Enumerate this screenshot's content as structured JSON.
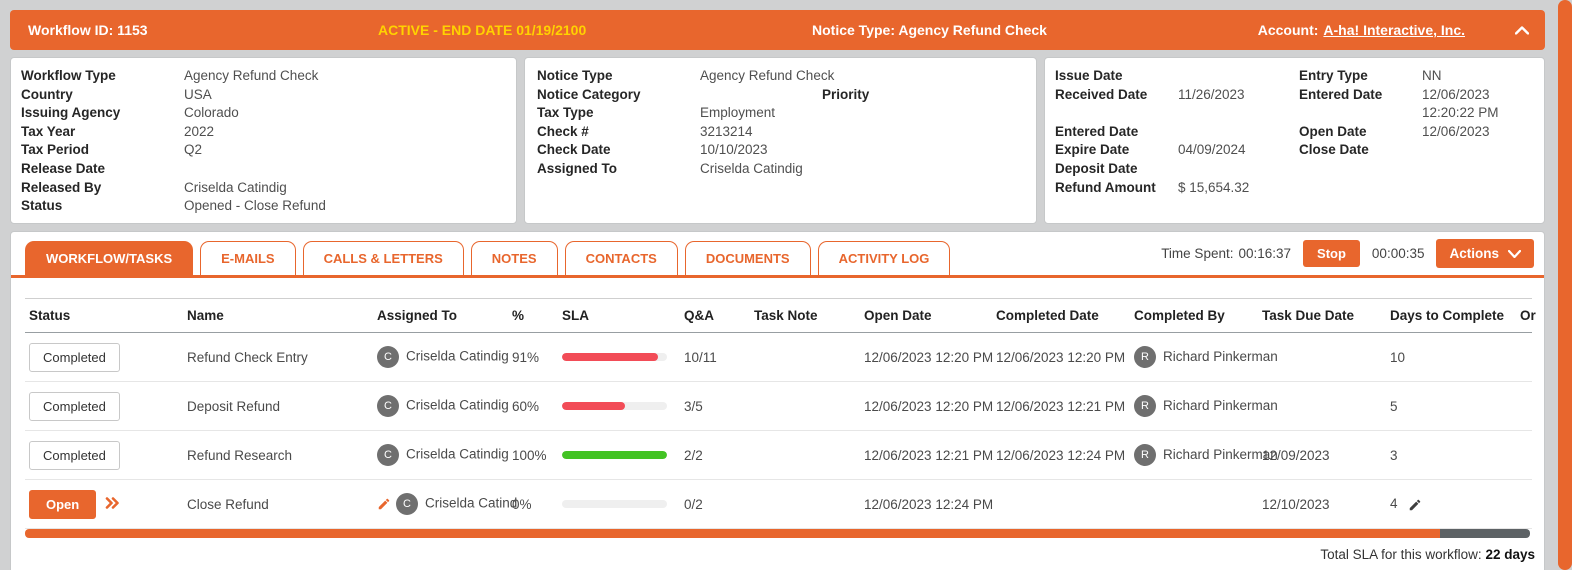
{
  "colors": {
    "accent_orange": "#e8662d",
    "active_yellow": "#ffd200",
    "sla_red": "#f24c57",
    "sla_green": "#43c324",
    "avatar_gray": "#6f6f6f",
    "scroll_thumb_gray": "#5d6265"
  },
  "icons": {
    "header_collapse": "chevron-up",
    "actions_menu": "chevron-down",
    "task_expand": "double-chevron-right",
    "edit": "pencil"
  },
  "header_bar": {
    "workflow_id": "Workflow ID: 1153",
    "active_status": "ACTIVE - END DATE 01/19/2100",
    "notice_type": "Notice Type: Agency Refund Check",
    "account_label": "Account:",
    "account_name": "A-ha! Interactive, Inc."
  },
  "workflow_panel": {
    "fields": [
      {
        "label": "Workflow Type",
        "value": "Agency Refund Check"
      },
      {
        "label": "Country",
        "value": "USA"
      },
      {
        "label": "Issuing Agency",
        "value": "Colorado"
      },
      {
        "label": "Tax Year",
        "value": "2022"
      },
      {
        "label": "Tax Period",
        "value": "Q2"
      },
      {
        "label": "Release Date",
        "value": ""
      },
      {
        "label": "Released By",
        "value": "Criselda Catindig"
      },
      {
        "label": "Status",
        "value": "Opened - Close Refund"
      }
    ]
  },
  "notice_panel": {
    "type_label": "Notice Type",
    "type_value": "Agency Refund Check",
    "category_label": "Notice Category",
    "category_value": "",
    "priority_label": "Priority",
    "priority_value": "",
    "fields": [
      {
        "label": "Tax Type",
        "value": "Employment"
      },
      {
        "label": "Check #",
        "value": "3213214"
      },
      {
        "label": "Check Date",
        "value": "10/10/2023"
      },
      {
        "label": "Assigned To",
        "value": "Criselda Catindig"
      }
    ]
  },
  "dates_panel": {
    "left": [
      {
        "label": "Issue Date",
        "value": ""
      },
      {
        "label": "Received Date",
        "value": "11/26/2023"
      },
      {
        "label": "",
        "value": ""
      },
      {
        "label": "Entered Date",
        "value": ""
      },
      {
        "label": "Expire Date",
        "value": "04/09/2024"
      },
      {
        "label": "Deposit Date",
        "value": ""
      },
      {
        "label": "Refund Amount",
        "value": "$ 15,654.32"
      }
    ],
    "right": [
      {
        "label": "Entry Type",
        "value": "NN"
      },
      {
        "label": "Entered Date",
        "value": "12/06/2023 12:20:22 PM"
      },
      {
        "label": "Open Date",
        "value": "12/06/2023"
      },
      {
        "label": "Close Date",
        "value": ""
      }
    ]
  },
  "tabs": [
    {
      "label": "WORKFLOW/TASKS",
      "state": "active"
    },
    {
      "label": "E-MAILS",
      "state": ""
    },
    {
      "label": "CALLS & LETTERS",
      "state": ""
    },
    {
      "label": "NOTES",
      "state": ""
    },
    {
      "label": "CONTACTS",
      "state": ""
    },
    {
      "label": "DOCUMENTS",
      "state": ""
    },
    {
      "label": "ACTIVITY LOG",
      "state": ""
    }
  ],
  "timer": {
    "time_spent_label": "Time Spent:",
    "time_spent": "00:16:37",
    "stop_label": "Stop",
    "session_time": "00:00:35",
    "actions_label": "Actions"
  },
  "task_table": {
    "columns": [
      {
        "label": "Status"
      },
      {
        "label": "Name"
      },
      {
        "label": "Assigned To"
      },
      {
        "label": "%"
      },
      {
        "label": "SLA"
      },
      {
        "label": "Q&A"
      },
      {
        "label": "Task Note"
      },
      {
        "label": "Open Date"
      },
      {
        "label": "Completed Date"
      },
      {
        "label": "Completed By"
      },
      {
        "label": "Task Due Date"
      },
      {
        "label": "Days to Complete"
      },
      {
        "label": "Or"
      }
    ],
    "rows": [
      {
        "status": "Completed",
        "status_style": "completed",
        "name": "Refund Check Entry",
        "assigned_initial": "C",
        "assigned_name": "Criselda Catindig",
        "percent": "91%",
        "sla_fill": 91,
        "sla_color": "red",
        "qa": "10/11",
        "task_note": "",
        "open_date": "12/06/2023 12:20 PM",
        "completed_date": "12/06/2023 12:20 PM",
        "completed_initial": "R",
        "completed_by": "Richard Pinkerman",
        "task_due_date": "",
        "days_to_complete": "10"
      },
      {
        "status": "Completed",
        "status_style": "completed",
        "name": "Deposit Refund",
        "assigned_initial": "C",
        "assigned_name": "Criselda Catindig",
        "percent": "60%",
        "sla_fill": 60,
        "sla_color": "red",
        "qa": "3/5",
        "task_note": "",
        "open_date": "12/06/2023 12:20 PM",
        "completed_date": "12/06/2023 12:21 PM",
        "completed_initial": "R",
        "completed_by": "Richard Pinkerman",
        "task_due_date": "",
        "days_to_complete": "5"
      },
      {
        "status": "Completed",
        "status_style": "completed",
        "name": "Refund Research",
        "assigned_initial": "C",
        "assigned_name": "Criselda Catindig",
        "percent": "100%",
        "sla_fill": 100,
        "sla_color": "green",
        "qa": "2/2",
        "task_note": "",
        "open_date": "12/06/2023 12:21 PM",
        "completed_date": "12/06/2023 12:24 PM",
        "completed_initial": "R",
        "completed_by": "Richard Pinkerman",
        "task_due_date": "12/09/2023",
        "days_to_complete": "3"
      },
      {
        "status": "Open",
        "status_style": "open",
        "has_expand": true,
        "name": "Close Refund",
        "has_edit_pencil": true,
        "assigned_initial": "C",
        "assigned_name": "Criselda Catind",
        "percent": "0%",
        "sla_fill": 0,
        "sla_color": "",
        "qa": "0/2",
        "task_note": "",
        "open_date": "12/06/2023 12:24 PM",
        "completed_date": "",
        "completed_initial": "",
        "completed_by": "",
        "task_due_date": "12/10/2023",
        "days_to_complete": "4",
        "has_days_pencil": true
      }
    ]
  },
  "footer": {
    "total_sla_label": "Total SLA for this workflow:",
    "total_sla_value": "22 days"
  }
}
